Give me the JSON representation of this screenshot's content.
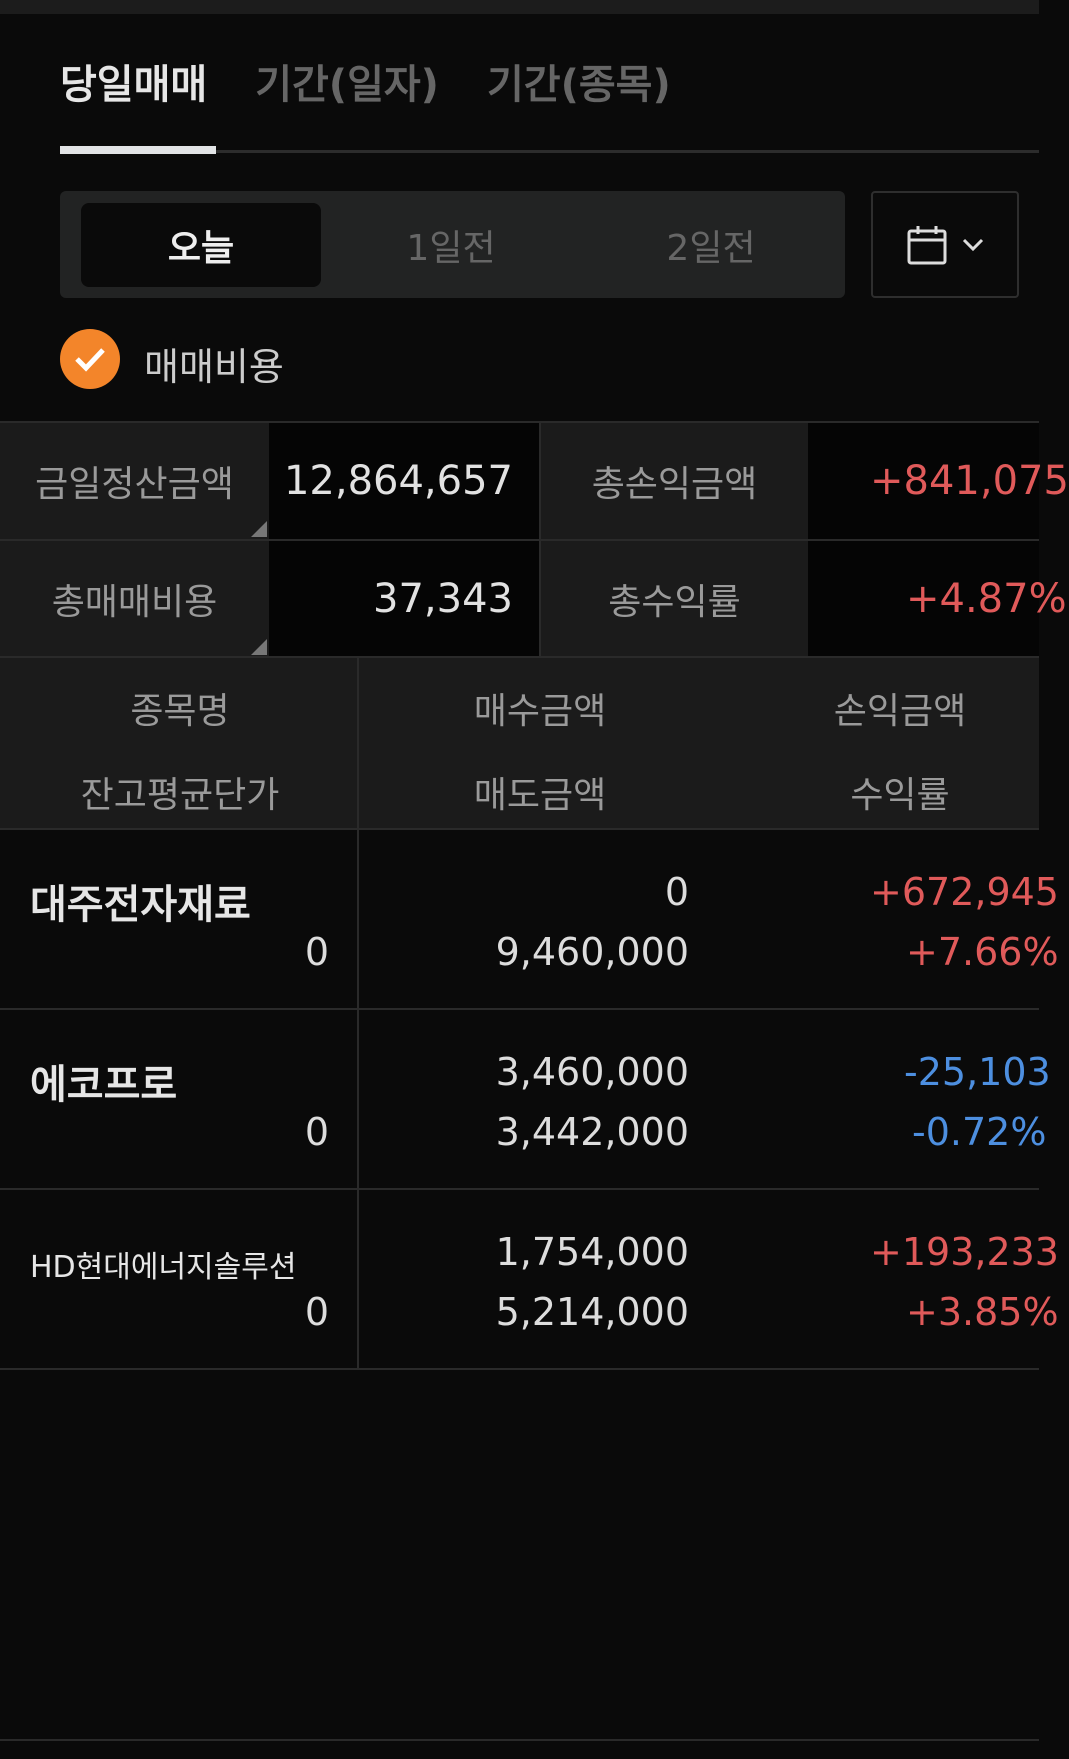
{
  "tabs": [
    {
      "label": "당일매매",
      "active": true
    },
    {
      "label": "기간(일자)"
    },
    {
      "label": "기간(종목)"
    }
  ],
  "segment": {
    "options": [
      "오늘",
      "1일전",
      "2일전"
    ],
    "selected": "오늘"
  },
  "calendar_button": {
    "icons": [
      "calendar-icon",
      "chevron-down-icon"
    ]
  },
  "fee_checkbox": {
    "label": "매매비용",
    "checked": true,
    "color": "#f3852a"
  },
  "summary": {
    "settle_label": "금일정산금액",
    "settle_value": "12,864,657",
    "pl_label": "총손익금액",
    "pl_value": "+841,075",
    "fee_label": "총매매비용",
    "fee_value": "37,343",
    "rate_label": "총수익률",
    "rate_value": "+4.87%"
  },
  "table": {
    "headers": {
      "name": "종목명",
      "avg": "잔고평균단가",
      "buy": "매수금액",
      "sell": "매도금액",
      "pl": "손익금액",
      "rate": "수익률"
    },
    "rows": [
      {
        "name": "대주전자재료",
        "avg": "0",
        "buy": "0",
        "sell": "9,460,000",
        "pl": "+672,945",
        "rate": "+7.66%",
        "dir": "up"
      },
      {
        "name": "에코프로",
        "avg": "0",
        "buy": "3,460,000",
        "sell": "3,442,000",
        "pl": "-25,103",
        "rate": "-0.72%",
        "dir": "down"
      },
      {
        "name": "HD현대에너지솔루션",
        "avg": "0",
        "buy": "1,754,000",
        "sell": "5,214,000",
        "pl": "+193,233",
        "rate": "+3.85%",
        "dir": "up"
      }
    ]
  },
  "colors": {
    "up": "#e05a5a",
    "down": "#4d8fe0",
    "accent": "#f3852a"
  }
}
